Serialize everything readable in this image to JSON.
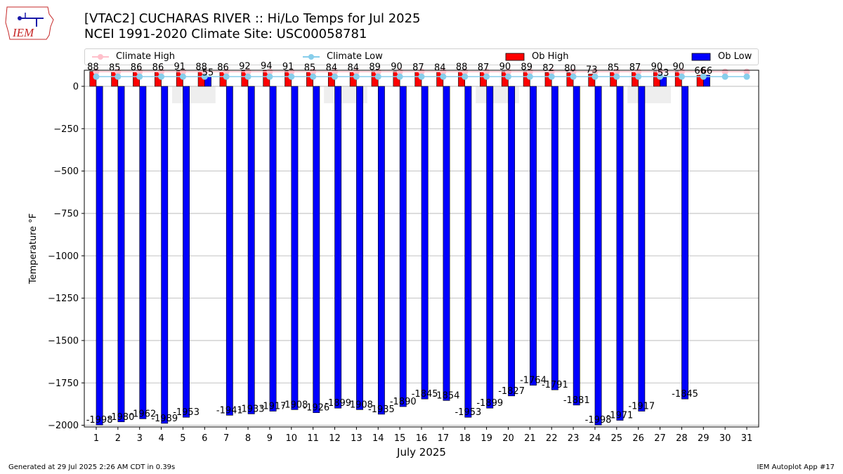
{
  "header": {
    "title_line1": "[VTAC2] CUCHARAS RIVER :: Hi/Lo Temps for Jul 2025",
    "title_line2": "NCEI 1991-2020 Climate Site: USC00058781"
  },
  "logo": {
    "text": "IEM"
  },
  "footer": {
    "generated": "Generated at 29 Jul 2025 2:26 AM CDT in 0.39s",
    "app": "IEM Autoplot App #17"
  },
  "colors": {
    "climate_high": "#ffc0cb",
    "climate_low": "#87ceeb",
    "ob_high": "#ff0000",
    "ob_low": "#0000ff",
    "weekend_shade": "#eeeeee",
    "grid": "#b0b0b0"
  },
  "chart_data": {
    "type": "bar",
    "xlabel": "July 2025",
    "ylabel": "Temperature °F",
    "ylim": [
      -2010,
      95
    ],
    "yticks": [
      0,
      -250,
      -500,
      -750,
      -1000,
      -1250,
      -1500,
      -1750,
      -2000
    ],
    "xlim": [
      0.45,
      31.55
    ],
    "grid": "horizontal",
    "legend_position": "top",
    "weekend_shading": [
      [
        5,
        6
      ],
      [
        12,
        13
      ],
      [
        19,
        20
      ],
      [
        26,
        27
      ]
    ],
    "categories": [
      "1",
      "2",
      "3",
      "4",
      "5",
      "6",
      "7",
      "8",
      "9",
      "10",
      "11",
      "12",
      "13",
      "14",
      "15",
      "16",
      "17",
      "18",
      "19",
      "20",
      "21",
      "22",
      "23",
      "24",
      "25",
      "26",
      "27",
      "28",
      "29",
      "30",
      "31"
    ],
    "series": [
      {
        "name": "Climate High",
        "type": "line",
        "values": [
          86,
          86,
          86,
          86,
          86,
          86,
          86,
          86,
          86,
          86,
          86,
          86,
          86,
          86,
          86,
          86,
          86,
          86,
          86,
          86,
          86,
          86,
          86,
          86,
          86,
          86,
          86,
          86,
          86,
          86,
          86
        ]
      },
      {
        "name": "Climate Low",
        "type": "line",
        "values": [
          57,
          57,
          57,
          57,
          57,
          57,
          57,
          57,
          57,
          57,
          57,
          57,
          57,
          57,
          57,
          57,
          57,
          57,
          57,
          57,
          57,
          57,
          57,
          57,
          57,
          57,
          57,
          57,
          57,
          57,
          57
        ]
      },
      {
        "name": "Ob High",
        "type": "bar",
        "values": [
          88,
          85,
          86,
          86,
          91,
          88,
          86,
          92,
          94,
          91,
          85,
          84,
          84,
          89,
          90,
          87,
          84,
          88,
          87,
          90,
          89,
          82,
          80,
          73,
          85,
          87,
          90,
          90,
          66,
          null,
          null
        ]
      },
      {
        "name": "Ob Low",
        "type": "bar",
        "values": [
          -1998,
          -1980,
          -1962,
          -1989,
          -1953,
          55,
          -1941,
          -1933,
          -1917,
          -1908,
          -1926,
          -1899,
          -1908,
          -1935,
          -1890,
          -1845,
          -1854,
          -1953,
          -1899,
          -1827,
          -1764,
          -1791,
          -1881,
          -1998,
          -1971,
          -1917,
          53,
          -1845,
          66,
          null,
          null
        ]
      }
    ]
  }
}
